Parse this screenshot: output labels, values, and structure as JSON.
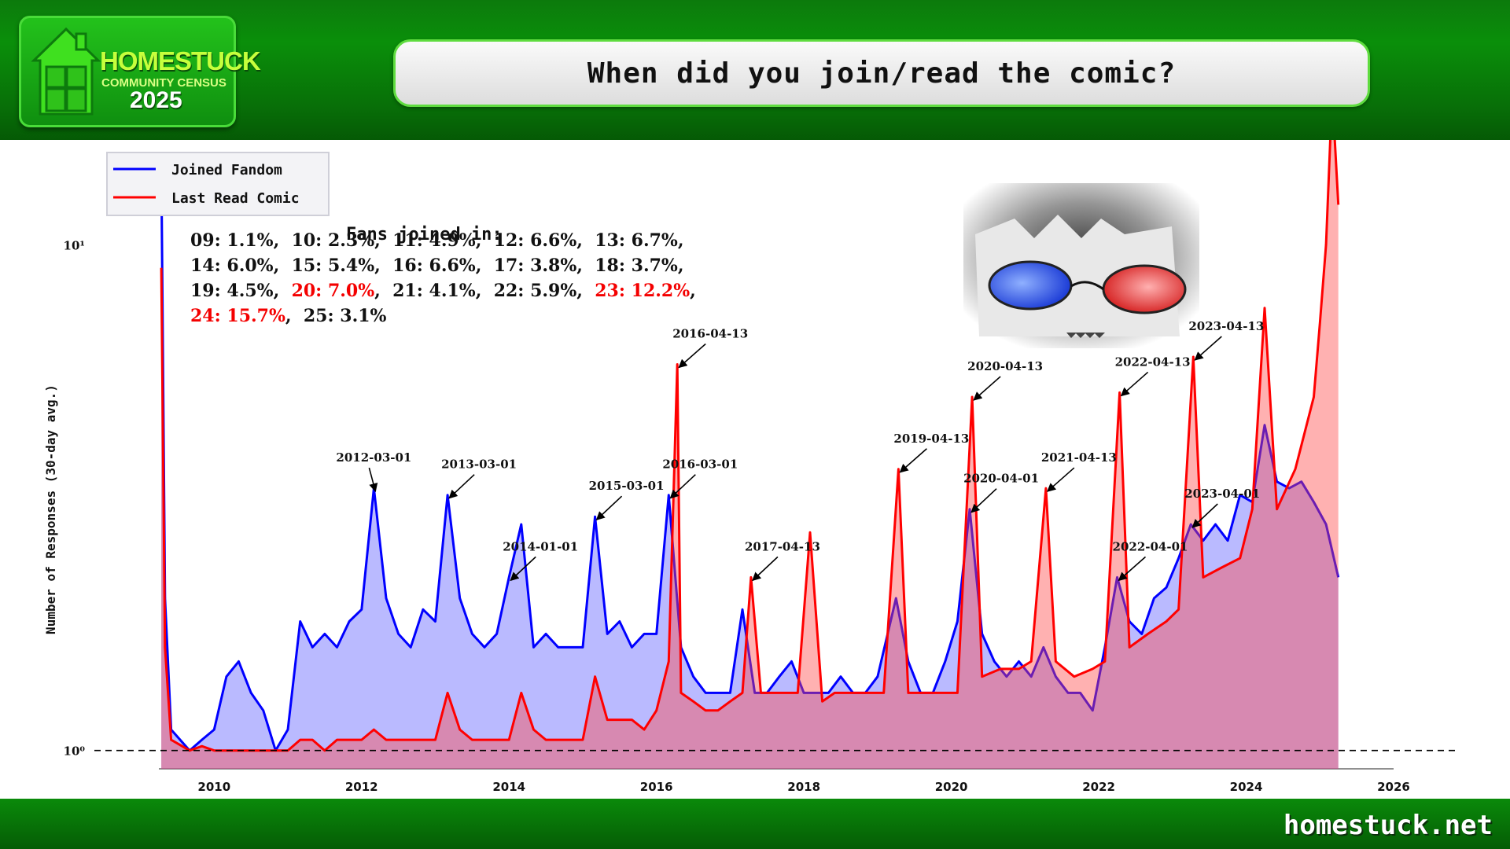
{
  "header": {
    "logo": {
      "title": "HOMESTUCK",
      "subtitle": "COMMUNITY CENSUS",
      "year": "2025"
    },
    "question": "When did you join/read the comic?"
  },
  "footer": {
    "site": "homestuck.net"
  },
  "colors": {
    "joined": "#0000ff",
    "last_read": "#ff0000",
    "header_green": "#0a8f0a"
  },
  "stats": {
    "title": "Fans joined in:",
    "entries": [
      {
        "label": "09:",
        "value": "1.1%",
        "highlight": false
      },
      {
        "label": "10:",
        "value": "2.3%",
        "highlight": false
      },
      {
        "label": "11:",
        "value": "4.9%",
        "highlight": false
      },
      {
        "label": "12:",
        "value": "6.6%",
        "highlight": false
      },
      {
        "label": "13:",
        "value": "6.7%",
        "highlight": false
      },
      {
        "label": "14:",
        "value": "6.0%",
        "highlight": false
      },
      {
        "label": "15:",
        "value": "5.4%",
        "highlight": false
      },
      {
        "label": "16:",
        "value": "6.6%",
        "highlight": false
      },
      {
        "label": "17:",
        "value": "3.8%",
        "highlight": false
      },
      {
        "label": "18:",
        "value": "3.7%",
        "highlight": false
      },
      {
        "label": "19:",
        "value": "4.5%",
        "highlight": false
      },
      {
        "label": "20:",
        "value": "7.0%",
        "highlight": true
      },
      {
        "label": "21:",
        "value": "4.1%",
        "highlight": false
      },
      {
        "label": "22:",
        "value": "5.9%",
        "highlight": false
      },
      {
        "label": "23:",
        "value": "12.2%",
        "highlight": true
      },
      {
        "label": "24:",
        "value": "15.7%",
        "highlight": true
      },
      {
        "label": "25:",
        "value": "3.1%",
        "highlight": false
      }
    ]
  },
  "chart_data": {
    "type": "area",
    "ylabel": "Number of Responses (30-day avg.)",
    "y_scale": "log",
    "ylim": [
      0.92,
      15
    ],
    "xlim": [
      "2009-04",
      "2026-01"
    ],
    "x_ticks": [
      "2010",
      "2012",
      "2014",
      "2016",
      "2018",
      "2020",
      "2022",
      "2024",
      "2026"
    ],
    "y_ticks": [
      "10⁰",
      "10¹"
    ],
    "reference_line": {
      "y": 1,
      "style": "dashed"
    },
    "legend": {
      "placement": "upper-left",
      "entries": [
        "Joined Fandom",
        "Last Read Comic"
      ]
    },
    "series": [
      {
        "name": "Joined Fandom",
        "x": [
          "2009-04-13",
          "2009-05",
          "2009-06",
          "2009-09",
          "2009-11",
          "2010-01",
          "2010-03",
          "2010-05",
          "2010-07",
          "2010-09",
          "2010-11",
          "2011-01",
          "2011-03",
          "2011-05",
          "2011-07",
          "2011-09",
          "2011-11",
          "2012-01",
          "2012-03",
          "2012-05",
          "2012-07",
          "2012-09",
          "2012-11",
          "2013-01",
          "2013-03",
          "2013-05",
          "2013-07",
          "2013-09",
          "2013-11",
          "2014-01",
          "2014-03",
          "2014-05",
          "2014-07",
          "2014-09",
          "2014-11",
          "2015-01",
          "2015-03",
          "2015-05",
          "2015-07",
          "2015-09",
          "2015-11",
          "2016-01",
          "2016-03",
          "2016-05",
          "2016-07",
          "2016-09",
          "2016-11",
          "2017-01",
          "2017-03",
          "2017-05",
          "2017-07",
          "2017-09",
          "2017-11",
          "2018-01",
          "2018-03",
          "2018-05",
          "2018-07",
          "2018-09",
          "2018-11",
          "2019-01",
          "2019-04",
          "2019-06",
          "2019-08",
          "2019-10",
          "2019-12",
          "2020-02",
          "2020-04",
          "2020-06",
          "2020-08",
          "2020-10",
          "2020-12",
          "2021-02",
          "2021-04",
          "2021-06",
          "2021-08",
          "2021-10",
          "2021-12",
          "2022-02",
          "2022-04",
          "2022-06",
          "2022-08",
          "2022-10",
          "2022-12",
          "2023-02",
          "2023-04",
          "2023-06",
          "2023-08",
          "2023-10",
          "2023-12",
          "2024-02",
          "2024-04",
          "2024-06",
          "2024-08",
          "2024-10",
          "2024-12",
          "2025-02",
          "2025-04"
        ],
        "y": [
          14.5,
          2.0,
          1.1,
          1.0,
          1.05,
          1.1,
          1.4,
          1.5,
          1.3,
          1.2,
          1.0,
          1.1,
          1.8,
          1.6,
          1.7,
          1.6,
          1.8,
          1.9,
          3.3,
          2.0,
          1.7,
          1.6,
          1.9,
          1.8,
          3.2,
          2.0,
          1.7,
          1.6,
          1.7,
          2.2,
          2.8,
          1.6,
          1.7,
          1.6,
          1.6,
          1.6,
          2.9,
          1.7,
          1.8,
          1.6,
          1.7,
          1.7,
          3.2,
          1.6,
          1.4,
          1.3,
          1.3,
          1.3,
          1.9,
          1.3,
          1.3,
          1.4,
          1.5,
          1.3,
          1.3,
          1.3,
          1.4,
          1.3,
          1.3,
          1.4,
          2.0,
          1.5,
          1.3,
          1.3,
          1.5,
          1.8,
          3.0,
          1.7,
          1.5,
          1.4,
          1.5,
          1.4,
          1.6,
          1.4,
          1.3,
          1.3,
          1.2,
          1.6,
          2.2,
          1.8,
          1.7,
          2.0,
          2.1,
          2.4,
          2.8,
          2.6,
          2.8,
          2.6,
          3.2,
          3.1,
          4.4,
          3.4,
          3.3,
          3.4,
          3.1,
          2.8,
          2.2
        ]
      },
      {
        "name": "Last Read Comic",
        "x": [
          "2009-04-13",
          "2009-05",
          "2009-06",
          "2009-09",
          "2009-11",
          "2010-01",
          "2010-03",
          "2010-05",
          "2010-07",
          "2010-09",
          "2010-11",
          "2011-01",
          "2011-03",
          "2011-05",
          "2011-07",
          "2011-09",
          "2011-11",
          "2012-01",
          "2012-03",
          "2012-05",
          "2012-07",
          "2012-09",
          "2012-11",
          "2013-01",
          "2013-03",
          "2013-05",
          "2013-07",
          "2013-09",
          "2013-11",
          "2014-01",
          "2014-03",
          "2014-05",
          "2014-07",
          "2014-09",
          "2014-11",
          "2015-01",
          "2015-03",
          "2015-05",
          "2015-07",
          "2015-09",
          "2015-11",
          "2016-01",
          "2016-03",
          "2016-04-13",
          "2016-05",
          "2016-07",
          "2016-09",
          "2016-11",
          "2017-01",
          "2017-03",
          "2017-04-13",
          "2017-06",
          "2017-09",
          "2017-12",
          "2018-02",
          "2018-04",
          "2018-06",
          "2018-09",
          "2018-12",
          "2019-02",
          "2019-04-13",
          "2019-06",
          "2019-09",
          "2019-12",
          "2020-02",
          "2020-04-13",
          "2020-06",
          "2020-09",
          "2020-12",
          "2021-02",
          "2021-04-13",
          "2021-06",
          "2021-09",
          "2021-12",
          "2022-02",
          "2022-04-13",
          "2022-06",
          "2022-09",
          "2022-12",
          "2023-02",
          "2023-04-13",
          "2023-06",
          "2023-09",
          "2023-12",
          "2024-02",
          "2024-04",
          "2024-06",
          "2024-09",
          "2024-12",
          "2025-01",
          "2025-02",
          "2025-03",
          "2025-04"
        ],
        "y": [
          9.0,
          1.6,
          1.05,
          1.0,
          1.02,
          1.0,
          1.0,
          1.0,
          1.0,
          1.0,
          1.0,
          1.0,
          1.05,
          1.05,
          1.0,
          1.05,
          1.05,
          1.05,
          1.1,
          1.05,
          1.05,
          1.05,
          1.05,
          1.05,
          1.3,
          1.1,
          1.05,
          1.05,
          1.05,
          1.05,
          1.3,
          1.1,
          1.05,
          1.05,
          1.05,
          1.05,
          1.4,
          1.15,
          1.15,
          1.15,
          1.1,
          1.2,
          1.5,
          5.8,
          1.3,
          1.25,
          1.2,
          1.2,
          1.25,
          1.3,
          2.2,
          1.3,
          1.3,
          1.3,
          2.7,
          1.25,
          1.3,
          1.3,
          1.3,
          1.3,
          3.6,
          1.3,
          1.3,
          1.3,
          1.3,
          5.0,
          1.4,
          1.45,
          1.45,
          1.5,
          3.3,
          1.5,
          1.4,
          1.45,
          1.5,
          5.1,
          1.6,
          1.7,
          1.8,
          1.9,
          6.0,
          2.2,
          2.3,
          2.4,
          3.0,
          7.5,
          3.0,
          3.6,
          5.0,
          7.0,
          10.0,
          20.0,
          12.0
        ]
      }
    ],
    "annotations": [
      {
        "label": "2012-03-01",
        "date": "2012-03-01"
      },
      {
        "label": "2013-03-01",
        "date": "2013-03-01"
      },
      {
        "label": "2014-01-01",
        "date": "2014-01-01"
      },
      {
        "label": "2015-03-01",
        "date": "2015-03-01"
      },
      {
        "label": "2016-03-01",
        "date": "2016-03-01"
      },
      {
        "label": "2016-04-13",
        "date": "2016-04-13"
      },
      {
        "label": "2017-04-13",
        "date": "2017-04-13"
      },
      {
        "label": "2019-04-13",
        "date": "2019-04-13"
      },
      {
        "label": "2020-04-01",
        "date": "2020-04-01"
      },
      {
        "label": "2020-04-13",
        "date": "2020-04-13"
      },
      {
        "label": "2021-04-13",
        "date": "2021-04-13"
      },
      {
        "label": "2022-04-01",
        "date": "2022-04-01"
      },
      {
        "label": "2022-04-13",
        "date": "2022-04-13"
      },
      {
        "label": "2023-04-01",
        "date": "2023-04-01"
      },
      {
        "label": "2023-04-13",
        "date": "2023-04-13"
      }
    ]
  }
}
